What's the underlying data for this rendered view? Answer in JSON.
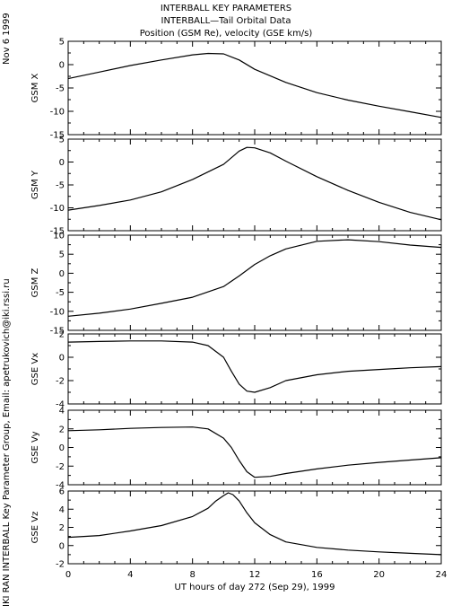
{
  "header": {
    "title1": "INTERBALL KEY PARAMETERS",
    "title2": "INTERBALL—Tail Orbital Data",
    "title3": "Position (GSM Re), velocity (GSE km/s)"
  },
  "side": {
    "date": "Nov  6 1999",
    "credit": "IKI RAN INTERBALL Key Parameter Group, Email: apetrukovich@iki.rssi.ru"
  },
  "chart_data": {
    "type": "line",
    "x_tick_labels": [
      "0",
      "4",
      "8",
      "12",
      "16",
      "20",
      "24"
    ],
    "x_ticks": [
      0,
      4,
      8,
      12,
      16,
      20,
      24
    ],
    "xlim": [
      0,
      24
    ],
    "xlabel": "UT hours of day 272 (Sep 29), 1999",
    "panels": [
      {
        "ylabel": "GSM X",
        "ylim": [
          -15,
          5
        ],
        "yticks": [
          5,
          0,
          -5,
          -10,
          -15
        ],
        "ytick_labels": [
          "5",
          "0",
          "-5",
          "-10",
          "-15"
        ],
        "x": [
          0,
          2,
          4,
          6,
          8,
          9,
          10,
          11,
          12,
          14,
          16,
          18,
          20,
          22,
          24
        ],
        "y": [
          -3.0,
          -1.6,
          -0.2,
          1.0,
          2.1,
          2.4,
          2.3,
          1.0,
          -1.0,
          -3.8,
          -6.0,
          -7.6,
          -8.9,
          -10.1,
          -11.3
        ]
      },
      {
        "ylabel": "GSM Y",
        "ylim": [
          -15,
          5
        ],
        "yticks": [
          5,
          0,
          -5,
          -10,
          -15
        ],
        "ytick_labels": [
          "5",
          "0",
          "-5",
          "-10",
          "-15"
        ],
        "x": [
          0,
          2,
          4,
          6,
          8,
          10,
          11,
          11.5,
          12,
          13,
          14,
          16,
          18,
          20,
          22,
          24
        ],
        "y": [
          -10.5,
          -9.5,
          -8.3,
          -6.5,
          -3.8,
          -0.5,
          2.4,
          3.2,
          3.1,
          2.0,
          0.2,
          -3.2,
          -6.2,
          -8.8,
          -11.0,
          -12.6
        ]
      },
      {
        "ylabel": "GSM Z",
        "ylim": [
          -15,
          10
        ],
        "yticks": [
          10,
          5,
          0,
          -5,
          -10,
          -15
        ],
        "ytick_labels": [
          "10",
          "5",
          "0",
          "-5",
          "-10",
          "-15"
        ],
        "x": [
          0,
          2,
          4,
          6,
          8,
          10,
          11,
          12,
          13,
          14,
          16,
          18,
          20,
          22,
          24
        ],
        "y": [
          -11.3,
          -10.5,
          -9.4,
          -7.9,
          -6.3,
          -3.5,
          -0.7,
          2.3,
          4.6,
          6.4,
          8.4,
          8.8,
          8.3,
          7.4,
          6.8
        ]
      },
      {
        "ylabel": "GSE Vx",
        "ylim": [
          -4,
          2
        ],
        "yticks": [
          2,
          0,
          -2,
          -4
        ],
        "ytick_labels": [
          "2",
          "0",
          "-2",
          "-4"
        ],
        "x": [
          0,
          2,
          4,
          6,
          8,
          9,
          10,
          10.5,
          11,
          11.5,
          12,
          13,
          14,
          16,
          18,
          20,
          22,
          24
        ],
        "y": [
          1.3,
          1.35,
          1.4,
          1.4,
          1.3,
          1.0,
          0.0,
          -1.2,
          -2.3,
          -2.9,
          -3.0,
          -2.6,
          -2.0,
          -1.5,
          -1.2,
          -1.05,
          -0.9,
          -0.8
        ]
      },
      {
        "ylabel": "GSE Vy",
        "ylim": [
          -4,
          4
        ],
        "yticks": [
          4,
          2,
          0,
          -2,
          -4
        ],
        "ytick_labels": [
          "4",
          "2",
          "0",
          "-2",
          "-4"
        ],
        "x": [
          0,
          2,
          4,
          6,
          8,
          9,
          10,
          10.5,
          11,
          11.5,
          12,
          13,
          14,
          16,
          18,
          20,
          22,
          24
        ],
        "y": [
          1.8,
          1.9,
          2.05,
          2.15,
          2.2,
          2.0,
          1.0,
          0.0,
          -1.4,
          -2.6,
          -3.2,
          -3.1,
          -2.8,
          -2.3,
          -1.9,
          -1.6,
          -1.35,
          -1.1
        ]
      },
      {
        "ylabel": "GSE Vz",
        "ylim": [
          -2,
          6
        ],
        "yticks": [
          6,
          4,
          2,
          0,
          -2
        ],
        "ytick_labels": [
          "6",
          "4",
          "2",
          "0",
          "-2"
        ],
        "x": [
          0,
          2,
          4,
          6,
          8,
          9,
          9.5,
          10,
          10.3,
          10.6,
          11,
          11.5,
          12,
          13,
          14,
          16,
          18,
          20,
          22,
          24
        ],
        "y": [
          0.9,
          1.1,
          1.6,
          2.2,
          3.2,
          4.1,
          4.9,
          5.5,
          5.8,
          5.6,
          4.9,
          3.6,
          2.5,
          1.2,
          0.4,
          -0.2,
          -0.5,
          -0.7,
          -0.85,
          -1.0
        ]
      }
    ]
  }
}
